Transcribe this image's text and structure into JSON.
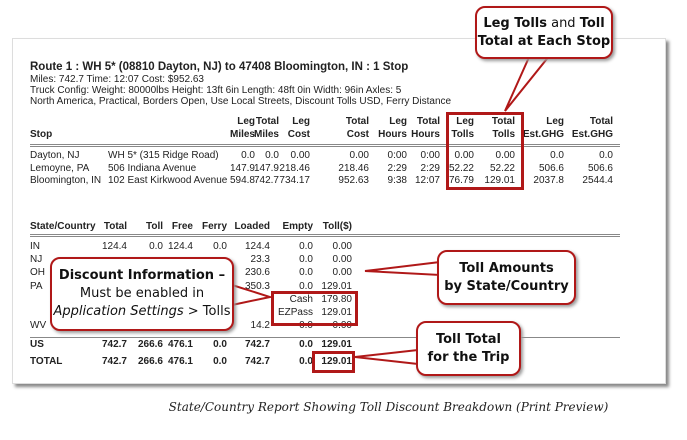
{
  "route": {
    "title": "Route 1 : WH 5* (08810 Dayton, NJ) to 47408 Bloomington, IN : 1 Stop",
    "summary": "Miles: 742.7   Time: 12:07   Cost: $952.63",
    "truck": "Truck Config: Weight: 80000lbs   Height: 13ft 6in   Length: 48ft 0in   Width: 96in   Axles: 5",
    "options": "North America, Practical, Borders Open, Use Local Streets, Discount Tolls USD, Ferry Distance"
  },
  "stops": {
    "headers": [
      [
        "",
        "Stop"
      ],
      [
        "",
        ""
      ],
      [
        "Leg",
        "Miles"
      ],
      [
        "Total",
        "Miles"
      ],
      [
        "Leg",
        "Cost"
      ],
      [
        "Total",
        "Cost"
      ],
      [
        "Leg",
        "Hours"
      ],
      [
        "Total",
        "Hours"
      ],
      [
        "Leg",
        "Tolls"
      ],
      [
        "Total",
        "Tolls"
      ],
      [
        "Leg",
        "Est.GHG"
      ],
      [
        "Total",
        "Est.GHG"
      ]
    ],
    "rows": [
      [
        "Dayton, NJ",
        "WH 5* (315 Ridge Road)",
        "0.0",
        "0.0",
        "0.00",
        "0.00",
        "0:00",
        "0:00",
        "0.00",
        "0.00",
        "0.0",
        "0.0"
      ],
      [
        "Lemoyne, PA",
        "506 Indiana Avenue",
        "147.9",
        "147.9",
        "218.46",
        "218.46",
        "2:29",
        "2:29",
        "52.22",
        "52.22",
        "506.6",
        "506.6"
      ],
      [
        "Bloomington, IN",
        "102 East Kirkwood Avenue",
        "594.8",
        "742.7",
        "734.17",
        "952.63",
        "9:38",
        "12:07",
        "76.79",
        "129.01",
        "2037.8",
        "2544.4"
      ]
    ]
  },
  "states": {
    "headers": [
      "State/Country",
      "Total",
      "Toll",
      "Free",
      "Ferry",
      "Loaded",
      "Empty",
      "Toll($)"
    ],
    "rows": [
      [
        "IN",
        "124.4",
        "0.0",
        "124.4",
        "0.0",
        "124.4",
        "0.0",
        "0.00"
      ],
      [
        "NJ",
        "",
        "",
        "",
        "",
        "23.3",
        "0.0",
        "0.00"
      ],
      [
        "OH",
        "",
        "",
        "",
        "",
        "230.6",
        "0.0",
        "0.00"
      ],
      [
        "PA",
        "",
        "",
        "",
        "",
        "350.3",
        "0.0",
        "129.01"
      ],
      [
        "",
        "",
        "",
        "",
        "",
        "",
        "Cash",
        "179.80"
      ],
      [
        "",
        "",
        "",
        "",
        "",
        "",
        "EZPass",
        "129.01"
      ],
      [
        "WV",
        "",
        "",
        "",
        "",
        "14.2",
        "0.0",
        "0.00"
      ]
    ],
    "us": [
      "US",
      "742.7",
      "266.6",
      "476.1",
      "0.0",
      "742.7",
      "0.0",
      "129.01"
    ],
    "total": [
      "TOTAL",
      "742.7",
      "266.6",
      "476.1",
      "0.0",
      "742.7",
      "0.0",
      "129.01"
    ]
  },
  "callouts": {
    "leg_tolls": {
      "b1": "Leg Tolls",
      "mid": " and ",
      "b2": "Toll",
      "b3": "Total at Each Stop"
    },
    "discount": {
      "title": "Discount Information –",
      "line2": "Must be enabled in",
      "italic": "Application Settings",
      "rest": " > Tolls"
    },
    "toll_amounts": {
      "line1": "Toll Amounts",
      "line2": "by State/Country"
    },
    "toll_total": {
      "line1": "Toll Total",
      "line2": "for the Trip"
    }
  },
  "caption": "State/Country Report Showing Toll Discount Breakdown (Print Preview)",
  "colors": {
    "accent": "#b01818"
  }
}
